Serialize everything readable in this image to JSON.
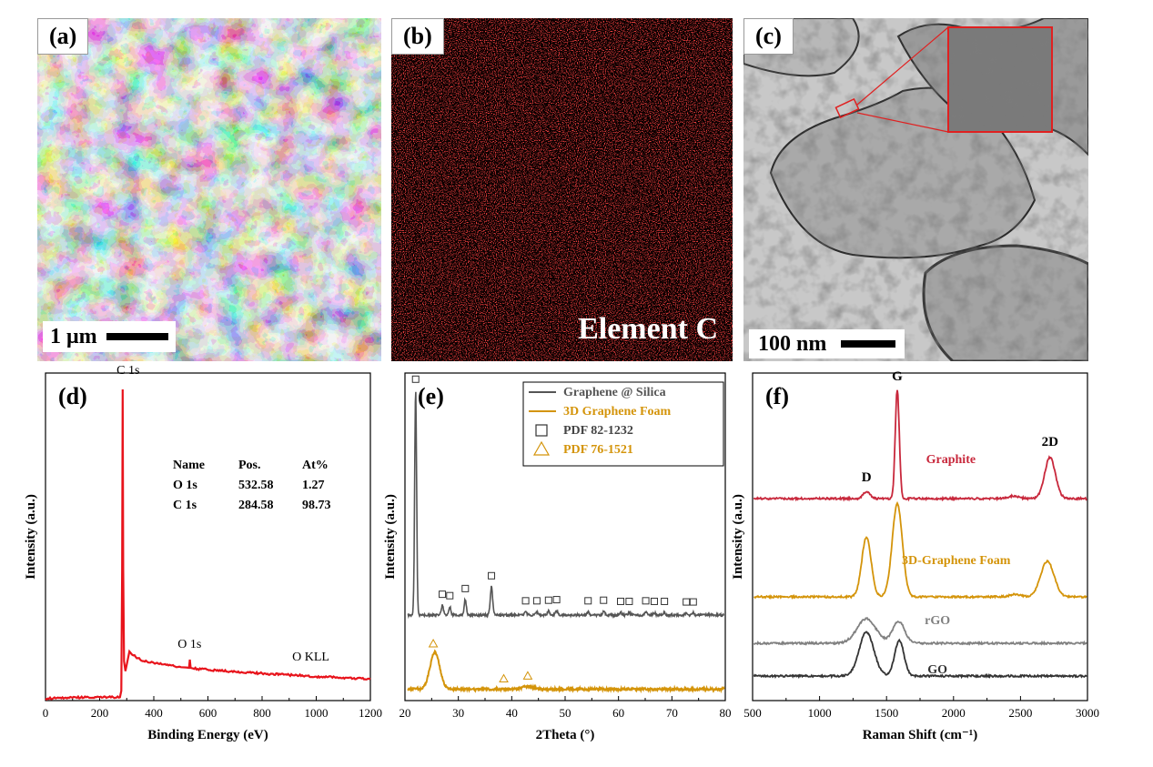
{
  "panels": {
    "a": {
      "label": "(a)",
      "scale_text": "1 μm"
    },
    "b": {
      "label": "(b)",
      "caption": "Element C"
    },
    "c": {
      "label": "(c)",
      "scale_text": "100 nm"
    }
  },
  "chart_data": [
    {
      "id": "d",
      "type": "line",
      "panel_label": "(d)",
      "xlabel": "Binding Energy (eV)",
      "ylabel": "Intensity (a.u.)",
      "xlim": [
        0,
        1200
      ],
      "x_ticks": [
        "0",
        "200",
        "400",
        "600",
        "800",
        "1000",
        "1200"
      ],
      "series": [
        {
          "color": "#e8141c",
          "x": [
            0,
            50,
            100,
            150,
            200,
            250,
            275,
            280,
            283,
            285,
            287,
            290,
            295,
            300,
            310,
            320,
            350,
            400,
            450,
            500,
            520,
            530,
            533,
            536,
            545,
            600,
            700,
            800,
            900,
            960,
            1000,
            1100,
            1200
          ],
          "y": [
            0.6,
            0.8,
            0.9,
            1.0,
            1.0,
            1.0,
            1.0,
            3,
            40,
            95,
            40,
            12,
            9,
            11,
            15,
            14,
            12.5,
            11.5,
            11.0,
            10.2,
            10.1,
            10.0,
            12.5,
            10.0,
            9.8,
            9.4,
            8.8,
            8.3,
            7.8,
            7.6,
            7.3,
            7.0,
            6.5
          ]
        }
      ],
      "peak_labels": [
        {
          "text": "C 1s",
          "x": 285
        },
        {
          "text": "O 1s",
          "x": 532
        },
        {
          "text": "O KLL",
          "x": 980
        }
      ],
      "table": {
        "headers": [
          "Name",
          "Pos.",
          "At%"
        ],
        "rows": [
          [
            "O 1s",
            "532.58",
            "1.27"
          ],
          [
            "C 1s",
            "284.58",
            "98.73"
          ]
        ]
      }
    },
    {
      "id": "e",
      "type": "line",
      "panel_label": "(e)",
      "xlabel": "2Theta (°)",
      "ylabel": "Intensity (a.u.)",
      "xlim": [
        20,
        80
      ],
      "x_ticks": [
        "20",
        "30",
        "40",
        "50",
        "60",
        "70",
        "80"
      ],
      "legend": [
        {
          "text": "Graphene @ Silica",
          "color": "#555555",
          "kind": "line"
        },
        {
          "text": "3D Graphene Foam",
          "color": "#d4940a",
          "kind": "line"
        },
        {
          "text": "PDF 82-1232",
          "color": "#333333",
          "kind": "square"
        },
        {
          "text": "PDF 76-1521",
          "color": "#d4940a",
          "kind": "triangle"
        }
      ],
      "series": [
        {
          "name": "Graphene @ Silica",
          "color": "#555555",
          "base": 3.0,
          "peaks": [
            [
              22.0,
              7.9,
              0.18
            ],
            [
              27.0,
              0.35,
              0.2
            ],
            [
              28.4,
              0.3,
              0.2
            ],
            [
              31.3,
              0.55,
              0.2
            ],
            [
              36.2,
              1.0,
              0.22
            ],
            [
              42.6,
              0.12,
              0.2
            ],
            [
              44.7,
              0.12,
              0.2
            ],
            [
              46.9,
              0.14,
              0.2
            ],
            [
              48.4,
              0.16,
              0.2
            ],
            [
              54.3,
              0.12,
              0.2
            ],
            [
              57.2,
              0.14,
              0.2
            ],
            [
              60.4,
              0.1,
              0.2
            ],
            [
              62.0,
              0.1,
              0.2
            ],
            [
              65.1,
              0.12,
              0.2
            ],
            [
              66.7,
              0.1,
              0.2
            ],
            [
              68.6,
              0.1,
              0.2
            ],
            [
              72.7,
              0.08,
              0.2
            ],
            [
              74.0,
              0.08,
              0.2
            ]
          ]
        },
        {
          "name": "3D Graphene Foam",
          "color": "#d4940a",
          "base": 0.4,
          "peaks": [
            [
              25.6,
              1.3,
              0.9
            ],
            [
              43.0,
              0.1,
              1.0
            ]
          ]
        }
      ],
      "square_markers": [
        22.0,
        27.0,
        28.4,
        31.3,
        36.2,
        42.6,
        44.7,
        46.9,
        48.4,
        54.3,
        57.2,
        60.4,
        62.0,
        65.1,
        66.7,
        68.6,
        72.7,
        74.0
      ],
      "triangle_markers": [
        25.3,
        38.5,
        43.0
      ]
    },
    {
      "id": "f",
      "type": "line",
      "panel_label": "(f)",
      "xlabel": "Raman Shift (cm⁻¹)",
      "ylabel": "Intensity (a.u.)",
      "xlim": [
        500,
        3000
      ],
      "x_ticks": [
        "500",
        "1000",
        "1500",
        "2000",
        "2500",
        "3000"
      ],
      "peak_labels": [
        {
          "text": "D",
          "x": 1350
        },
        {
          "text": "G",
          "x": 1580
        },
        {
          "text": "2D",
          "x": 2720
        }
      ],
      "series": [
        {
          "name": "Graphite",
          "color": "#c8283c",
          "base": 7.4,
          "peaks": [
            [
              1350,
              0.25,
              25
            ],
            [
              1580,
              4.0,
              15
            ],
            [
              2450,
              0.1,
              40
            ],
            [
              2720,
              1.5,
              40
            ]
          ]
        },
        {
          "name": "3D-Graphene Foam",
          "color": "#d4940a",
          "base": 3.8,
          "peaks": [
            [
              1350,
              2.2,
              35
            ],
            [
              1580,
              3.4,
              38
            ],
            [
              2460,
              0.1,
              40
            ],
            [
              2700,
              1.3,
              50
            ]
          ]
        },
        {
          "name": "rGO",
          "color": "#808080",
          "base": 2.1,
          "peaks": [
            [
              1350,
              0.9,
              70
            ],
            [
              1590,
              0.8,
              45
            ]
          ]
        },
        {
          "name": "GO",
          "color": "#333333",
          "base": 0.9,
          "peaks": [
            [
              1350,
              1.6,
              55
            ],
            [
              1595,
              1.3,
              35
            ]
          ]
        }
      ]
    }
  ]
}
